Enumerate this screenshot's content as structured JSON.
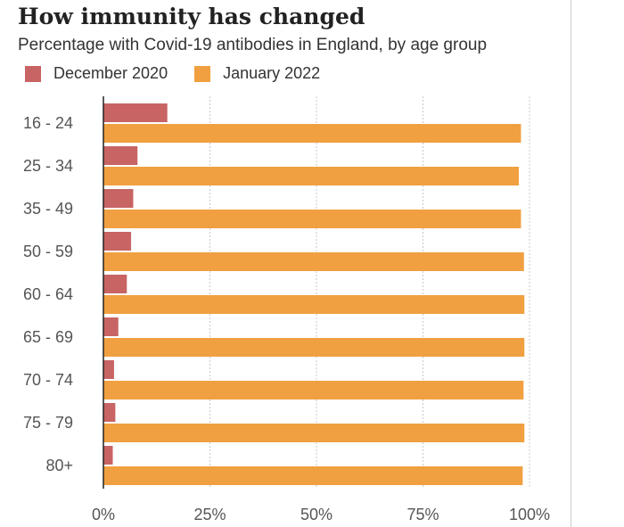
{
  "chart_data": {
    "type": "bar",
    "orientation": "horizontal",
    "title": "How immunity has changed",
    "subtitle": "Percentage with Covid-19 antibodies in England, by age group",
    "categories": [
      "16 - 24",
      "25 - 34",
      "35 - 49",
      "50 - 59",
      "60 - 64",
      "65 - 69",
      "70 - 74",
      "75 - 79",
      "80+"
    ],
    "series": [
      {
        "name": "December 2020",
        "color": "#c86464",
        "values": [
          15,
          8,
          7,
          6.5,
          5.5,
          3.5,
          2.5,
          2.8,
          2.2
        ]
      },
      {
        "name": "January 2022",
        "color": "#f0a040",
        "values": [
          98,
          97.5,
          98,
          98.7,
          98.8,
          98.8,
          98.6,
          98.8,
          98.4
        ]
      }
    ],
    "xlim": [
      0,
      100
    ],
    "xticks": [
      0,
      25,
      50,
      75,
      100
    ],
    "xtick_labels": [
      "0%",
      "25%",
      "50%",
      "75%",
      "100%"
    ],
    "xlabel": "",
    "ylabel": "",
    "grid": true,
    "legend_position": "top-left"
  }
}
